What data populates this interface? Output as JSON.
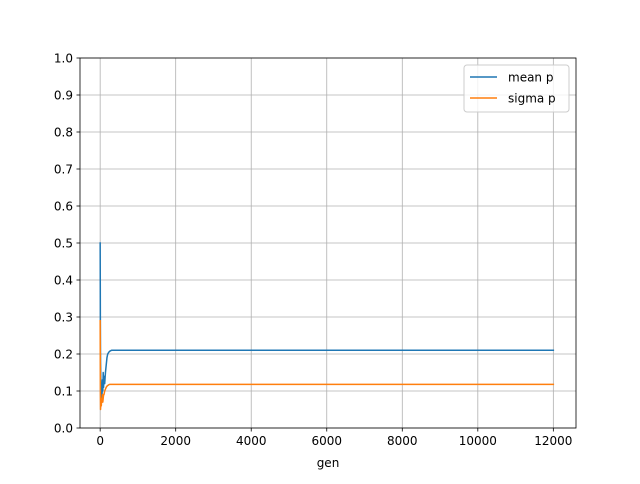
{
  "chart_data": {
    "type": "line",
    "title": "",
    "xlabel": "gen",
    "ylabel": "",
    "xlim": [
      -534,
      12600
    ],
    "ylim": [
      0.0,
      1.0
    ],
    "xticks": [
      0,
      2000,
      4000,
      6000,
      8000,
      10000,
      12000
    ],
    "xtick_labels": [
      "0",
      "2000",
      "4000",
      "6000",
      "8000",
      "10000",
      "12000"
    ],
    "yticks": [
      0.0,
      0.1,
      0.2,
      0.3,
      0.4,
      0.5,
      0.6,
      0.7,
      0.8,
      0.9,
      1.0
    ],
    "ytick_labels": [
      "0.0",
      "0.1",
      "0.2",
      "0.3",
      "0.4",
      "0.5",
      "0.6",
      "0.7",
      "0.8",
      "0.9",
      "1.0"
    ],
    "grid": true,
    "legend_position": "top-right",
    "series": [
      {
        "name": "mean p",
        "color": "#1f77b4",
        "x": [
          0,
          5,
          10,
          20,
          30,
          40,
          50,
          60,
          70,
          80,
          90,
          100,
          120,
          140,
          160,
          180,
          200,
          230,
          260,
          300,
          400,
          600,
          1000,
          2000,
          4000,
          6000,
          8000,
          10000,
          12000
        ],
        "y": [
          0.5,
          0.3,
          0.18,
          0.11,
          0.08,
          0.1,
          0.09,
          0.13,
          0.1,
          0.15,
          0.11,
          0.14,
          0.12,
          0.15,
          0.17,
          0.19,
          0.2,
          0.205,
          0.208,
          0.21,
          0.21,
          0.21,
          0.21,
          0.21,
          0.21,
          0.21,
          0.21,
          0.21,
          0.21
        ]
      },
      {
        "name": "sigma p",
        "color": "#ff7f0e",
        "x": [
          0,
          5,
          10,
          20,
          30,
          40,
          50,
          60,
          70,
          80,
          90,
          100,
          120,
          140,
          160,
          180,
          200,
          230,
          260,
          300,
          400,
          600,
          1000,
          2000,
          4000,
          6000,
          8000,
          10000,
          12000
        ],
        "y": [
          0.29,
          0.1,
          0.05,
          0.07,
          0.06,
          0.08,
          0.07,
          0.09,
          0.07,
          0.08,
          0.09,
          0.09,
          0.1,
          0.105,
          0.11,
          0.113,
          0.115,
          0.117,
          0.118,
          0.118,
          0.118,
          0.118,
          0.118,
          0.118,
          0.118,
          0.118,
          0.118,
          0.118,
          0.118
        ]
      }
    ]
  }
}
